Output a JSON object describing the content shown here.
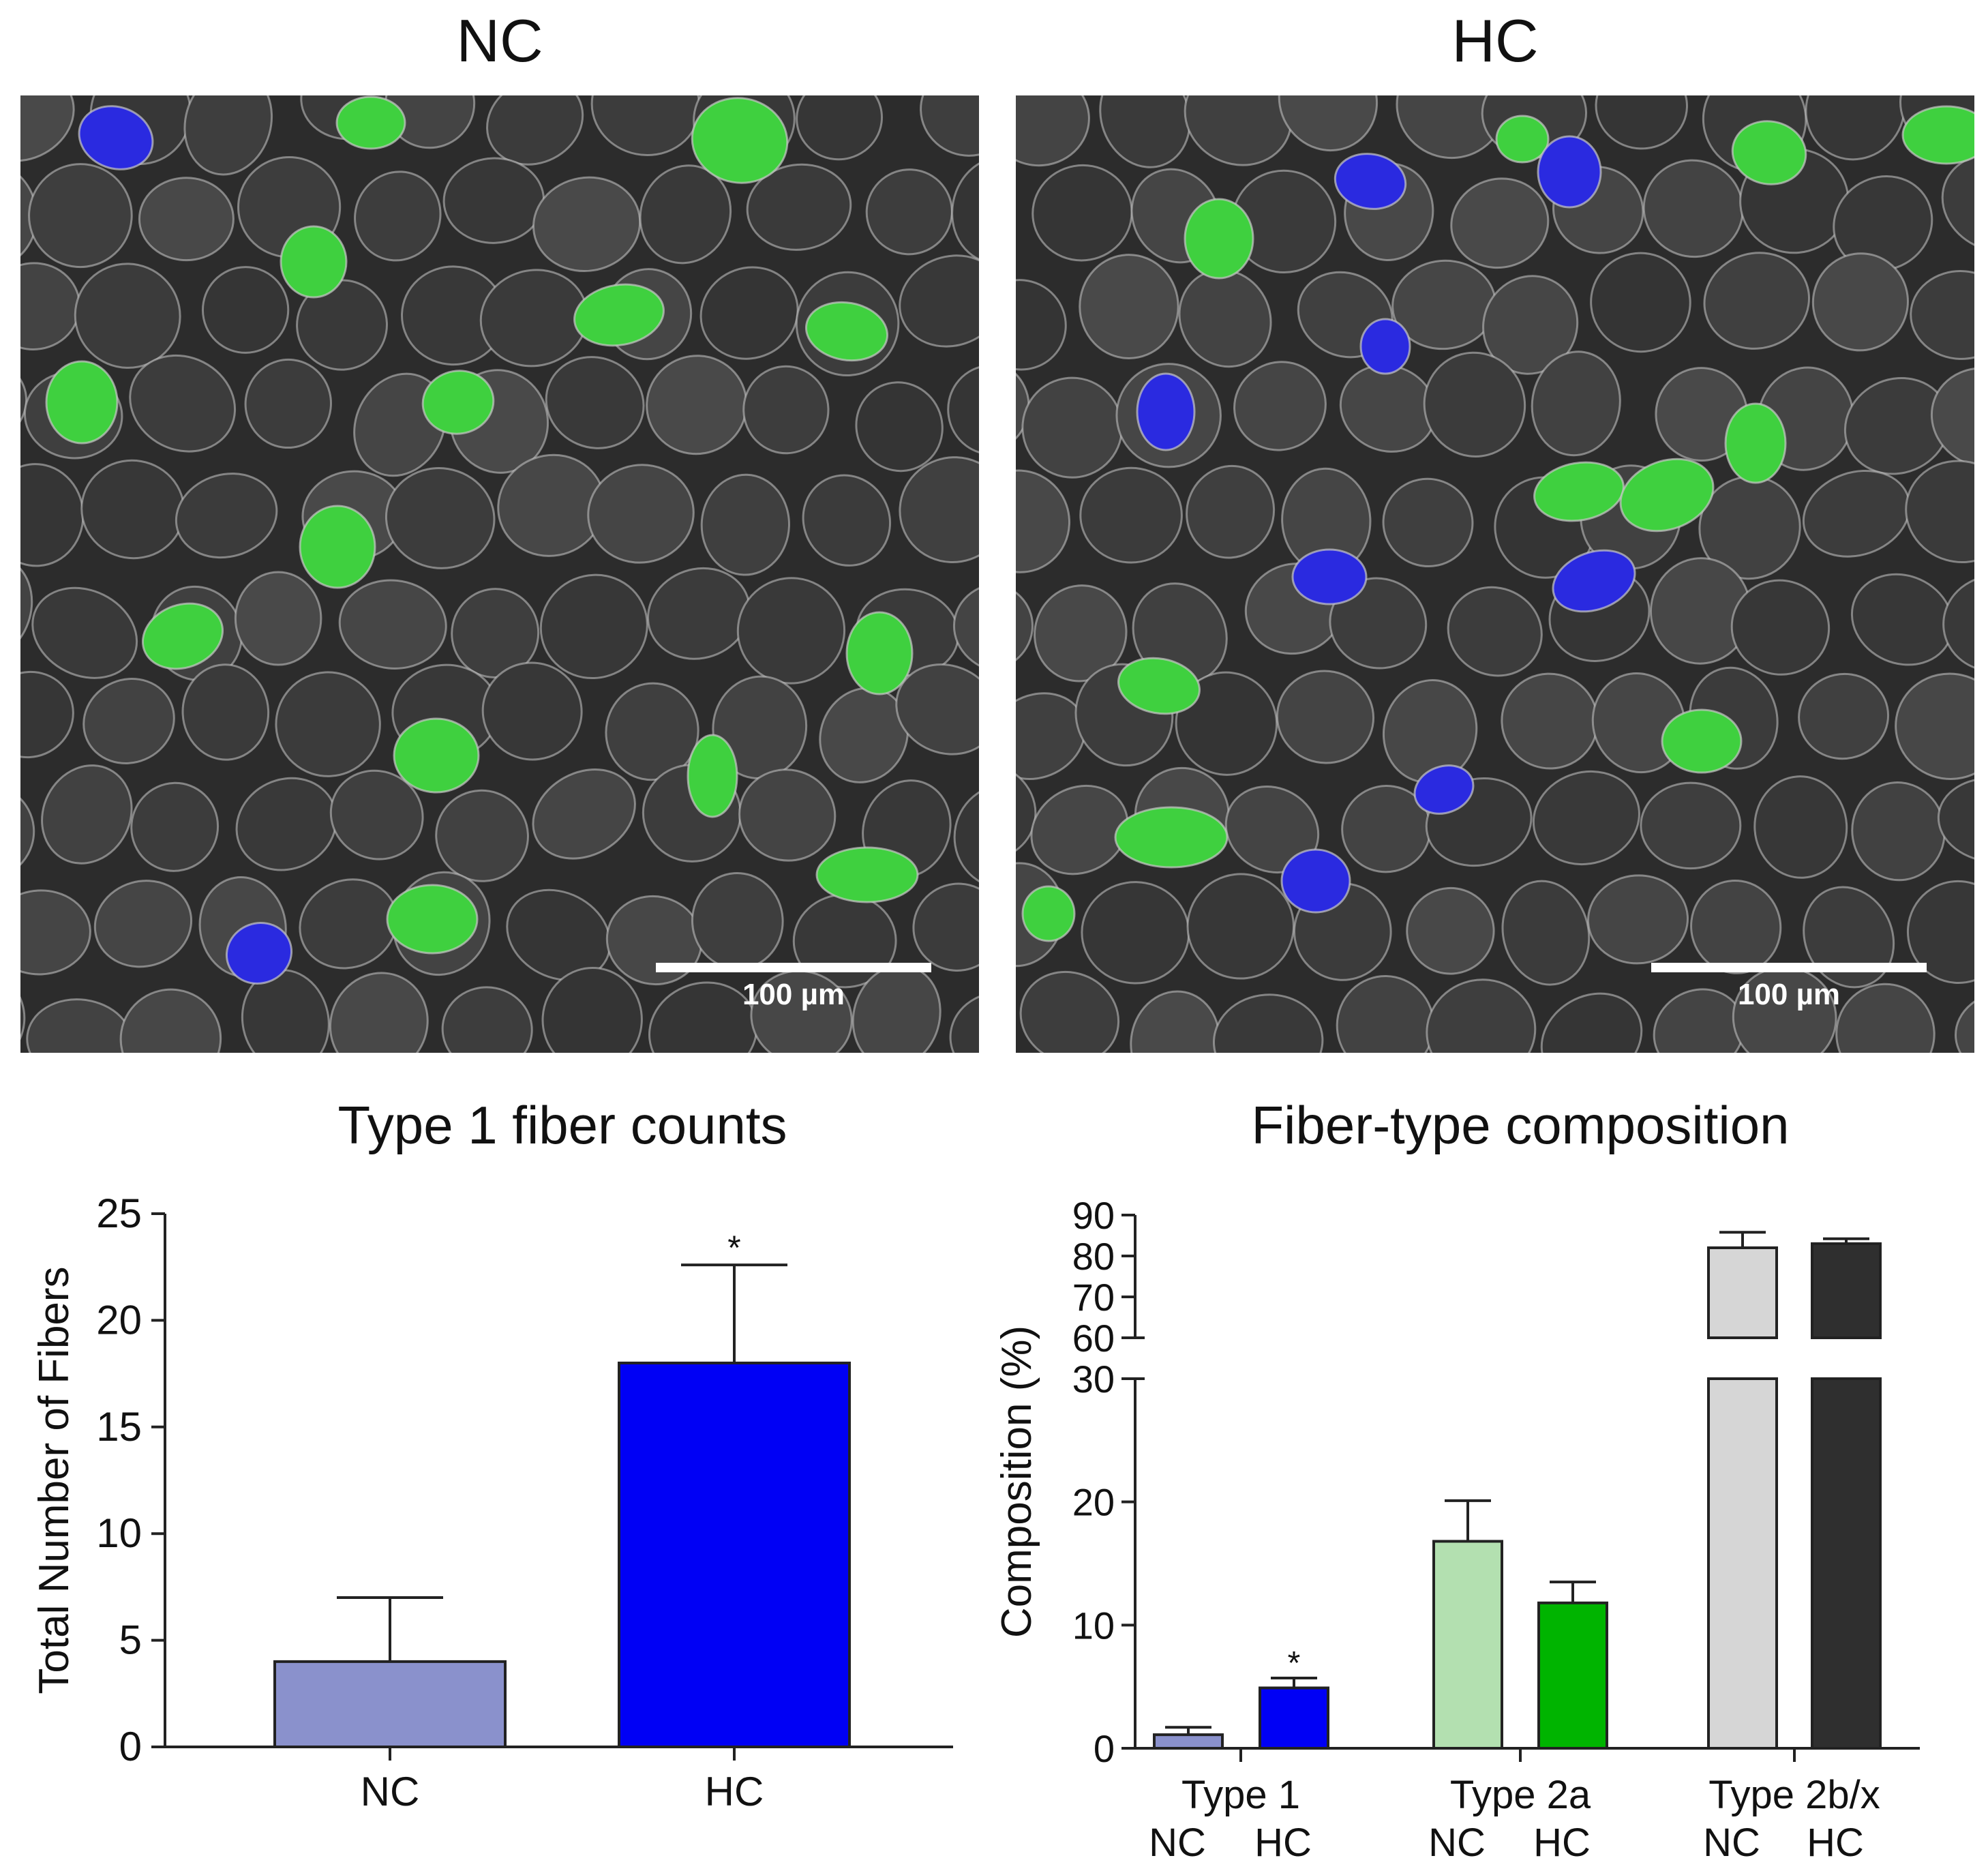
{
  "panels": {
    "nc": {
      "title": "NC",
      "scale_label": "100 µm"
    },
    "hc": {
      "title": "HC",
      "scale_label": "100 µm"
    }
  },
  "colors": {
    "type1_nc": "#8a91cc",
    "type1_hc": "#0000f5",
    "type2a_nc": "#b3e0b0",
    "type2a_hc": "#00b400",
    "type2bx_nc": "#d6d6d6",
    "type2bx_hc": "#2f2f2f",
    "fiber_bg": "#3a3a3a",
    "membrane": "#c8c8c8",
    "stain_green": "#3fd03f",
    "stain_blue": "#2a2ae0"
  },
  "chart_data": [
    {
      "type": "bar",
      "title": "Type 1 fiber counts",
      "xlabel": "",
      "ylabel": "Total Number of Fibers",
      "categories": [
        "NC",
        "HC"
      ],
      "values": [
        4,
        18
      ],
      "errors": [
        3,
        4.6
      ],
      "significance": [
        "",
        "*"
      ],
      "ylim": [
        0,
        25
      ],
      "yticks": [
        "0",
        "5",
        "10",
        "15",
        "20",
        "25"
      ]
    },
    {
      "type": "bar",
      "title": "Fiber-type composition",
      "xlabel": "",
      "ylabel": "Composition (%)",
      "groups": [
        {
          "label": "Type 1",
          "sub": [
            "NC",
            "HC"
          ],
          "values": [
            1.1,
            4.9
          ],
          "errors": [
            0.6,
            0.8
          ],
          "significance": [
            "",
            "*"
          ]
        },
        {
          "label": "Type 2a",
          "sub": [
            "NC",
            "HC"
          ],
          "values": [
            16.8,
            11.8
          ],
          "errors": [
            3.3,
            1.7
          ],
          "significance": [
            "",
            ""
          ]
        },
        {
          "label": "Type 2b/x",
          "sub": [
            "NC",
            "HC"
          ],
          "values": [
            82,
            83
          ],
          "errors": [
            3.8,
            1.2
          ],
          "significance": [
            "",
            ""
          ]
        }
      ],
      "y_axis_break": {
        "lower": [
          0,
          30
        ],
        "upper": [
          60,
          90
        ]
      },
      "yticks_lower": [
        "0",
        "10",
        "20",
        "30"
      ],
      "yticks_upper": [
        "60",
        "70",
        "80",
        "90"
      ]
    }
  ]
}
